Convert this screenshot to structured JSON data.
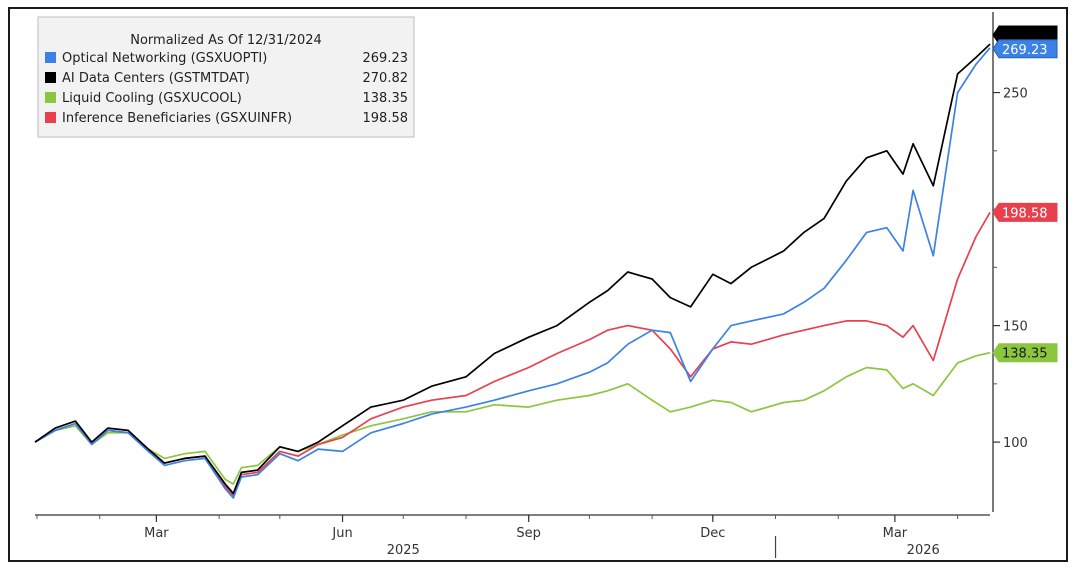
{
  "chart_data": {
    "type": "line",
    "legend": {
      "title": "Normalized As Of 12/31/2024",
      "position": "top-left"
    },
    "ylim": [
      70,
      282
    ],
    "y_ticks": [
      "100",
      "150",
      "250"
    ],
    "y_tick_values": [
      100,
      150,
      250
    ],
    "y_minor_ticks": [
      125,
      175,
      200,
      225,
      275
    ],
    "x_range": [
      "2024-12-31",
      "2026-04-17"
    ],
    "x_month_ticks": [
      {
        "label": "Mar",
        "date": "2025-03-01"
      },
      {
        "label": "Jun",
        "date": "2025-06-01"
      },
      {
        "label": "Sep",
        "date": "2025-09-01"
      },
      {
        "label": "Dec",
        "date": "2025-12-01"
      },
      {
        "label": "Mar",
        "date": "2026-03-01"
      }
    ],
    "x_year_labels": [
      {
        "label": "2025",
        "date": "2025-07-01"
      },
      {
        "label": "2026",
        "date": "2026-03-15"
      }
    ],
    "year_divider_date": "2026-01-01",
    "grid": false,
    "series": [
      {
        "name": "Optical Networking (GSXUOPTI)",
        "last_value": "269.23",
        "color": "#3c82e6",
        "x": [
          "2024-12-31",
          "2025-01-10",
          "2025-01-20",
          "2025-01-28",
          "2025-02-05",
          "2025-02-15",
          "2025-02-25",
          "2025-03-05",
          "2025-03-15",
          "2025-03-25",
          "2025-04-04",
          "2025-04-08",
          "2025-04-12",
          "2025-04-20",
          "2025-05-01",
          "2025-05-10",
          "2025-05-20",
          "2025-06-01",
          "2025-06-15",
          "2025-07-01",
          "2025-07-15",
          "2025-08-01",
          "2025-08-15",
          "2025-09-01",
          "2025-09-15",
          "2025-10-01",
          "2025-10-10",
          "2025-10-20",
          "2025-11-01",
          "2025-11-10",
          "2025-11-20",
          "2025-12-01",
          "2025-12-10",
          "2025-12-20",
          "2026-01-05",
          "2026-01-15",
          "2026-01-25",
          "2026-02-05",
          "2026-02-15",
          "2026-02-25",
          "2026-03-05",
          "2026-03-10",
          "2026-03-20",
          "2026-04-01",
          "2026-04-10",
          "2026-04-17"
        ],
        "values": [
          100,
          105,
          108,
          99,
          105,
          104,
          96,
          90,
          92,
          93,
          80,
          76,
          85,
          86,
          95,
          92,
          97,
          96,
          104,
          108,
          112,
          115,
          118,
          122,
          125,
          130,
          134,
          142,
          148,
          147,
          126,
          140,
          150,
          152,
          155,
          160,
          166,
          178,
          190,
          192,
          182,
          208,
          180,
          250,
          262,
          269.23
        ]
      },
      {
        "name": "AI Data Centers (GSTMTDAT)",
        "last_value": "270.82",
        "color": "#000000",
        "x": [
          "2024-12-31",
          "2025-01-10",
          "2025-01-20",
          "2025-01-28",
          "2025-02-05",
          "2025-02-15",
          "2025-02-25",
          "2025-03-05",
          "2025-03-15",
          "2025-03-25",
          "2025-04-04",
          "2025-04-08",
          "2025-04-12",
          "2025-04-20",
          "2025-05-01",
          "2025-05-10",
          "2025-05-20",
          "2025-06-01",
          "2025-06-15",
          "2025-07-01",
          "2025-07-15",
          "2025-08-01",
          "2025-08-15",
          "2025-09-01",
          "2025-09-15",
          "2025-10-01",
          "2025-10-10",
          "2025-10-20",
          "2025-11-01",
          "2025-11-10",
          "2025-11-20",
          "2025-12-01",
          "2025-12-10",
          "2025-12-20",
          "2026-01-05",
          "2026-01-15",
          "2026-01-25",
          "2026-02-05",
          "2026-02-15",
          "2026-02-25",
          "2026-03-05",
          "2026-03-10",
          "2026-03-20",
          "2026-04-01",
          "2026-04-10",
          "2026-04-17"
        ],
        "values": [
          100,
          106,
          109,
          100,
          106,
          105,
          97,
          91,
          93,
          94,
          82,
          78,
          87,
          88,
          98,
          96,
          100,
          107,
          115,
          118,
          124,
          128,
          138,
          145,
          150,
          160,
          165,
          173,
          170,
          162,
          158,
          172,
          168,
          175,
          182,
          190,
          196,
          212,
          222,
          225,
          215,
          228,
          210,
          258,
          265,
          270.82
        ]
      },
      {
        "name": "Liquid Cooling (GSXUCOOL)",
        "last_value": "138.35",
        "color": "#8cc63f",
        "x": [
          "2024-12-31",
          "2025-01-10",
          "2025-01-20",
          "2025-01-28",
          "2025-02-05",
          "2025-02-15",
          "2025-02-25",
          "2025-03-05",
          "2025-03-15",
          "2025-03-25",
          "2025-04-04",
          "2025-04-08",
          "2025-04-12",
          "2025-04-20",
          "2025-05-01",
          "2025-05-10",
          "2025-05-20",
          "2025-06-01",
          "2025-06-15",
          "2025-07-01",
          "2025-07-15",
          "2025-08-01",
          "2025-08-15",
          "2025-09-01",
          "2025-09-15",
          "2025-10-01",
          "2025-10-10",
          "2025-10-20",
          "2025-11-01",
          "2025-11-10",
          "2025-11-20",
          "2025-12-01",
          "2025-12-10",
          "2025-12-20",
          "2026-01-05",
          "2026-01-15",
          "2026-01-25",
          "2026-02-05",
          "2026-02-15",
          "2026-02-25",
          "2026-03-05",
          "2026-03-10",
          "2026-03-20",
          "2026-04-01",
          "2026-04-10",
          "2026-04-17"
        ],
        "values": [
          100,
          105,
          107,
          99,
          104,
          104,
          97,
          93,
          95,
          96,
          84,
          82,
          89,
          90,
          98,
          96,
          99,
          103,
          107,
          110,
          113,
          113,
          116,
          115,
          118,
          120,
          122,
          125,
          118,
          113,
          115,
          118,
          117,
          113,
          117,
          118,
          122,
          128,
          132,
          131,
          123,
          125,
          120,
          134,
          137,
          138.35
        ]
      },
      {
        "name": "Inference Beneficiaries (GSXUINFR)",
        "last_value": "198.58",
        "color": "#e8404c",
        "x": [
          "2024-12-31",
          "2025-01-10",
          "2025-01-20",
          "2025-01-28",
          "2025-02-05",
          "2025-02-15",
          "2025-02-25",
          "2025-03-05",
          "2025-03-15",
          "2025-03-25",
          "2025-04-04",
          "2025-04-08",
          "2025-04-12",
          "2025-04-20",
          "2025-05-01",
          "2025-05-10",
          "2025-05-20",
          "2025-06-01",
          "2025-06-15",
          "2025-07-01",
          "2025-07-15",
          "2025-08-01",
          "2025-08-15",
          "2025-09-01",
          "2025-09-15",
          "2025-10-01",
          "2025-10-10",
          "2025-10-20",
          "2025-11-01",
          "2025-11-10",
          "2025-11-20",
          "2025-12-01",
          "2025-12-10",
          "2025-12-20",
          "2026-01-05",
          "2026-01-15",
          "2026-01-25",
          "2026-02-05",
          "2026-02-15",
          "2026-02-25",
          "2026-03-05",
          "2026-03-10",
          "2026-03-20",
          "2026-04-01",
          "2026-04-10",
          "2026-04-17"
        ],
        "values": [
          100,
          105,
          108,
          99,
          105,
          104,
          97,
          91,
          93,
          94,
          81,
          77,
          86,
          87,
          96,
          94,
          99,
          102,
          110,
          115,
          118,
          120,
          126,
          132,
          138,
          144,
          148,
          150,
          148,
          140,
          128,
          140,
          143,
          142,
          146,
          148,
          150,
          152,
          152,
          150,
          145,
          150,
          135,
          170,
          188,
          198.58
        ]
      }
    ]
  }
}
